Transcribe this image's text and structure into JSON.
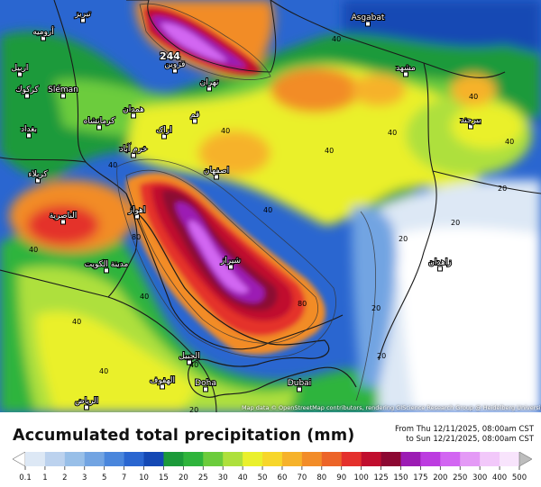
{
  "map": {
    "max_value_label": "244",
    "cities": [
      {
        "name": "Asgabat"
      },
      {
        "name": "Sléman"
      },
      {
        "name": "Doha"
      },
      {
        "name": "Dubai"
      },
      {
        "name": "أرومیه"
      },
      {
        "name": "تبریز"
      },
      {
        "name": "اربیل"
      },
      {
        "name": "كركوك"
      },
      {
        "name": "همدان"
      },
      {
        "name": "كرمانشاه"
      },
      {
        "name": "بغداد"
      },
      {
        "name": "كربلاء"
      },
      {
        "name": "اراک"
      },
      {
        "name": "خرم آباد"
      },
      {
        "name": "اصفهان"
      },
      {
        "name": "الناصرية"
      },
      {
        "name": "اهواز"
      },
      {
        "name": "مدينة الكويت"
      },
      {
        "name": "شیراز"
      },
      {
        "name": "الجبيل"
      },
      {
        "name": "الهفوف"
      },
      {
        "name": "الرياض"
      },
      {
        "name": "مشهد"
      },
      {
        "name": "تهران"
      },
      {
        "name": "قزوين"
      },
      {
        "name": "قم"
      },
      {
        "name": "بیرجند"
      },
      {
        "name": "زاهدان"
      }
    ],
    "contour_labels": [
      "40",
      "40",
      "40",
      "40",
      "40",
      "40",
      "40",
      "40",
      "40",
      "20",
      "20",
      "20",
      "20",
      "20",
      "20",
      "80",
      "80",
      "40",
      "40",
      "40",
      "40"
    ],
    "attribution": "Map data © OpenStreetMap contributors, rendering GIScience Research Group @ Heidelberg University"
  },
  "legend": {
    "title": "Accumulated total precipitation (mm)",
    "date_from": "From Thu 12/11/2025, 08:00am CST",
    "date_to": "to Sun 12/21/2025, 08:00am CST",
    "unit": "mm",
    "thresholds": [
      "0.1",
      "1",
      "2",
      "3",
      "5",
      "7",
      "10",
      "15",
      "20",
      "25",
      "30",
      "40",
      "50",
      "60",
      "70",
      "80",
      "90",
      "100",
      "125",
      "150",
      "175",
      "200",
      "250",
      "300",
      "400",
      "500"
    ],
    "colors": [
      "#ffffff",
      "#dde8f5",
      "#bcd2ee",
      "#98bfe8",
      "#72a4e2",
      "#4a86dc",
      "#2a66d0",
      "#1448b4",
      "#1c9a3a",
      "#2fb43c",
      "#6ccc3c",
      "#aee03c",
      "#eaf02c",
      "#f7d62a",
      "#f6b22a",
      "#f28c28",
      "#ec6428",
      "#e4302c",
      "#c00e2e",
      "#8c0832",
      "#9c1cb4",
      "#bc3ce0",
      "#d266f2",
      "#e49af6",
      "#f2c8fa",
      "#f8e4fc",
      "#bdbdbd"
    ]
  }
}
